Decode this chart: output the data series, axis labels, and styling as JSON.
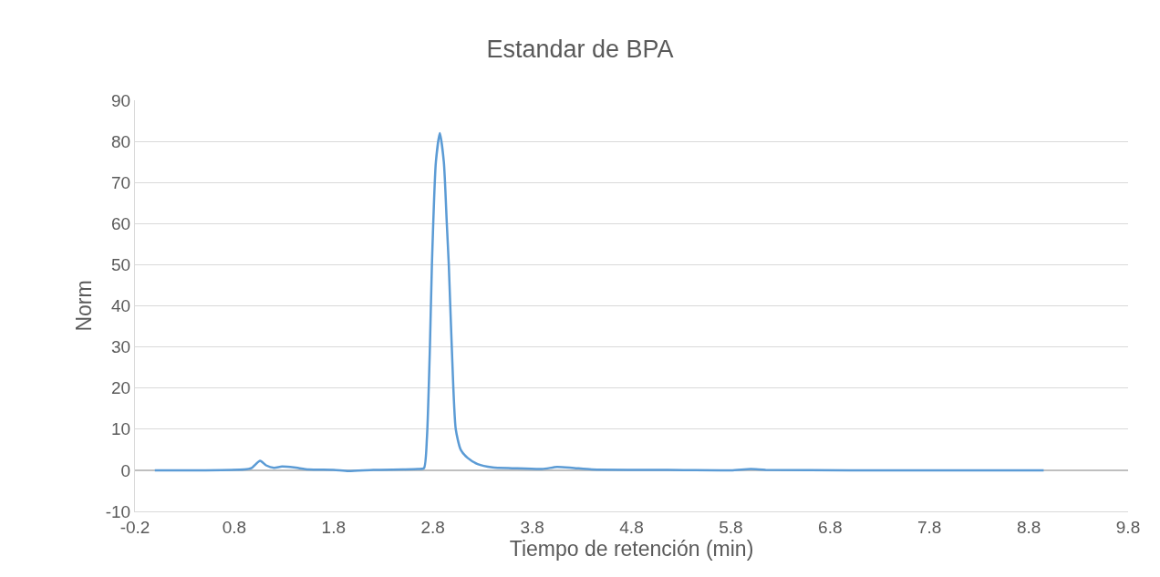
{
  "chart_data": {
    "type": "line",
    "title": "Estandar de BPA",
    "xlabel": "Tiempo de retención (min)",
    "ylabel": "Norm",
    "xlim": [
      -0.2,
      9.8
    ],
    "xticks": [
      -0.2,
      0.8,
      1.8,
      2.8,
      3.8,
      4.8,
      5.8,
      6.8,
      7.8,
      8.8,
      9.8
    ],
    "ylim": [
      -10,
      90
    ],
    "yticks": [
      -10,
      0,
      10,
      20,
      30,
      40,
      50,
      60,
      70,
      80,
      90
    ],
    "grid": "y",
    "marker": "none",
    "line_style": "solid",
    "legend": false,
    "x": [
      0,
      0.5,
      0.9,
      0.97,
      1.06,
      1.12,
      1.2,
      1.28,
      1.4,
      1.55,
      1.8,
      1.95,
      2.2,
      2.5,
      2.65,
      2.71,
      2.74,
      2.77,
      2.79,
      2.83,
      2.87,
      2.91,
      2.94,
      2.96,
      2.99,
      3.03,
      3.08,
      3.15,
      3.25,
      3.4,
      3.6,
      3.9,
      4.05,
      4.2,
      4.4,
      5.0,
      5.8,
      6.0,
      6.15,
      7.0,
      8.0,
      8.95
    ],
    "series": [
      {
        "color": "#5b9bd5",
        "values": [
          0,
          0,
          0.2,
          0.5,
          2.3,
          1.2,
          0.6,
          0.9,
          0.7,
          0.2,
          0.1,
          -0.2,
          0.1,
          0.2,
          0.3,
          0.5,
          8,
          30,
          50,
          75,
          82,
          75,
          60,
          50,
          30,
          10,
          5,
          3,
          1.5,
          0.7,
          0.5,
          0.3,
          0.8,
          0.6,
          0.2,
          0.1,
          0,
          0.3,
          0.1,
          0,
          0,
          0
        ]
      }
    ]
  }
}
